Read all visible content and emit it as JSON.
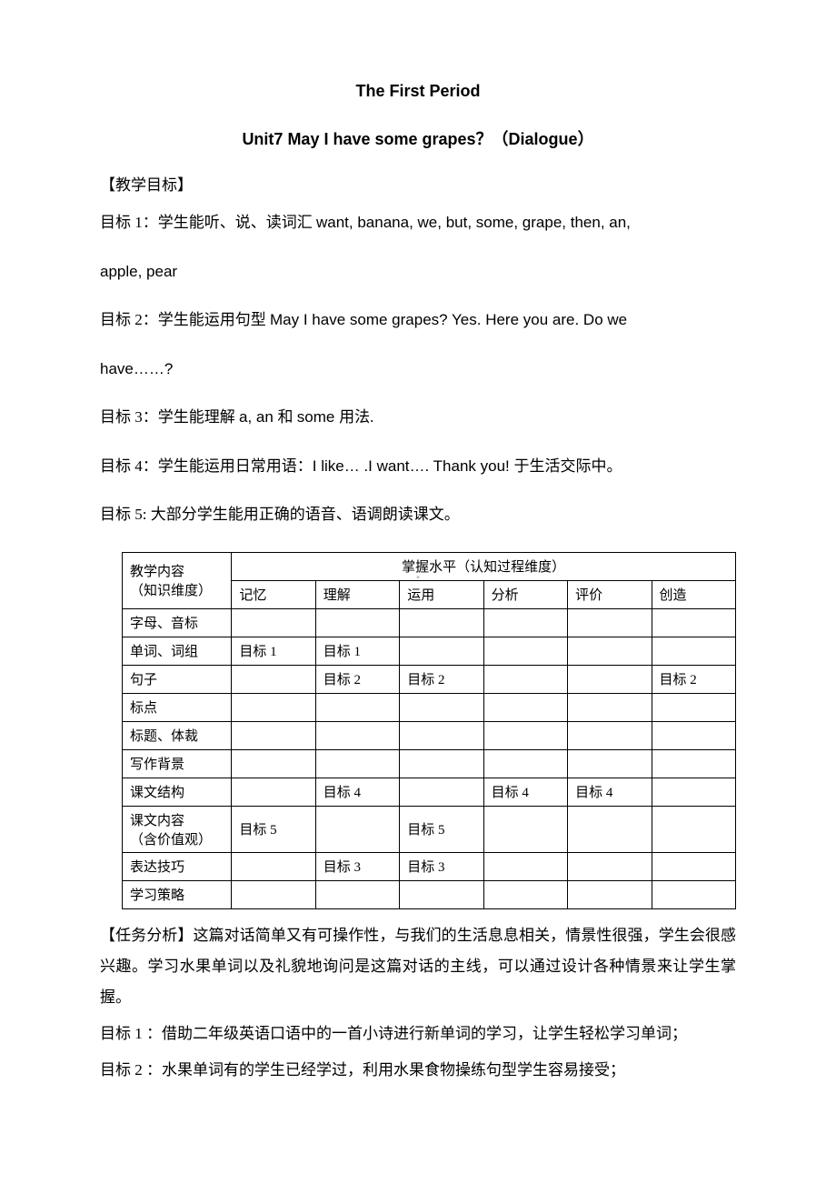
{
  "titles": {
    "line1": "The First Period",
    "line2_latin": "Unit7   May I have some grapes",
    "line2_cn_q": "？（",
    "line2_dlg": "Dialogue",
    "line2_cn_close": "）"
  },
  "section_head": "【教学目标】",
  "goals": {
    "g1_a": "目标 1：学生能听、说、读词汇 ",
    "g1_b": "want, banana, we, but, some, grape, then, an,",
    "g1_c": "apple, pear",
    "g2_a": "目标 2：学生能运用句型 ",
    "g2_b": "May I have some grapes?    Yes. Here you are. Do we",
    "g2_c": "have……?",
    "g3_a": "目标 3：学生能理解 ",
    "g3_b": "a, an ",
    "g3_c": " 和 ",
    "g3_d": "some ",
    "g3_e": "用法.",
    "g4_a": "目标 4：学生能运用日常用语：",
    "g4_b": "I like… .I want…. Thank you! ",
    "g4_c": " 于生活交际中。",
    "g5": "目标 5:  大部分学生能用正确的语音、语调朗读课文。"
  },
  "table": {
    "header_content_l1": "教学内容",
    "header_content_l2": "（知识维度）",
    "header_levels": "掌握水平（认知过程维度）",
    "cols": [
      "记忆",
      "理解",
      "运用",
      "分析",
      "评价",
      "创造"
    ],
    "rows": [
      {
        "label": "字母、音标",
        "cells": [
          "",
          "",
          "",
          "",
          "",
          ""
        ]
      },
      {
        "label": "单词、词组",
        "cells": [
          "目标 1",
          "目标 1",
          "",
          "",
          "",
          ""
        ]
      },
      {
        "label": "句子",
        "cells": [
          "",
          "目标 2",
          "目标 2",
          "",
          "",
          "目标 2"
        ]
      },
      {
        "label": "标点",
        "cells": [
          "",
          "",
          "",
          "",
          "",
          ""
        ]
      },
      {
        "label": "标题、体裁",
        "cells": [
          "",
          "",
          "",
          "",
          "",
          ""
        ]
      },
      {
        "label": "写作背景",
        "cells": [
          "",
          "",
          "",
          "",
          "",
          ""
        ]
      },
      {
        "label": "课文结构",
        "cells": [
          "",
          "目标 4",
          "",
          "目标 4",
          "目标 4",
          ""
        ]
      },
      {
        "label": "课文内容\n（含价值观）",
        "cells": [
          "目标 5",
          "",
          "目标 5",
          "",
          "",
          ""
        ]
      },
      {
        "label": "表达技巧",
        "cells": [
          "",
          "目标 3",
          "目标 3",
          "",
          "",
          ""
        ]
      },
      {
        "label": "学习策略",
        "cells": [
          "",
          "",
          "",
          "",
          "",
          ""
        ]
      }
    ]
  },
  "analysis": {
    "p1": "【任务分析】这篇对话简单又有可操作性，与我们的生活息息相关，情景性很强，学生会很感兴趣。学习水果单词以及礼貌地询问是这篇对话的主线，可以通过设计各种情景来让学生掌握。",
    "p2": "目标 1 ：借助二年级英语口语中的一首小诗进行新单词的学习，让学生轻松学习单词；",
    "p3": "目标 2 ：水果单词有的学生已经学过，利用水果食物操练句型学生容易接受；"
  },
  "dot_mark": "▪"
}
